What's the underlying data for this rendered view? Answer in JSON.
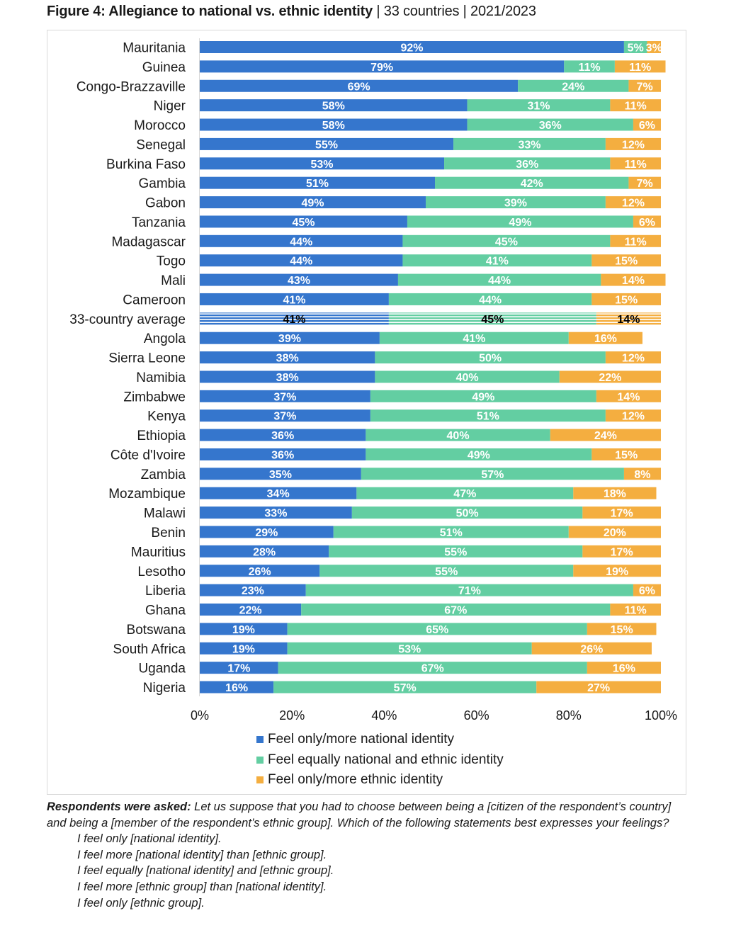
{
  "title": {
    "bold": "Figure 4: Allegiance to national vs. ethnic identity",
    "rest": " | 33 countries | 2021/2023"
  },
  "colors": {
    "national": "#3576cd",
    "equal": "#63cea2",
    "ethnic": "#f4ae40",
    "frame": "#d9d9d9"
  },
  "chart_data": {
    "type": "bar",
    "orientation": "horizontal",
    "stacked": true,
    "title": "Figure 4: Allegiance to national vs. ethnic identity | 33 countries | 2021/2023",
    "xlabel": "",
    "ylabel": "",
    "xlim": [
      0,
      100
    ],
    "x_ticks": [
      "0%",
      "20%",
      "40%",
      "60%",
      "80%",
      "100%"
    ],
    "grid": false,
    "legend_position": "bottom",
    "categories": [
      "Mauritania",
      "Guinea",
      "Congo-Brazzaville",
      "Niger",
      "Morocco",
      "Senegal",
      "Burkina Faso",
      "Gambia",
      "Gabon",
      "Tanzania",
      "Madagascar",
      "Togo",
      "Mali",
      "Cameroon",
      "33-country average",
      "Angola",
      "Sierra Leone",
      "Namibia",
      "Zimbabwe",
      "Kenya",
      "Ethiopia",
      "Côte d'Ivoire",
      "Zambia",
      "Mozambique",
      "Malawi",
      "Benin",
      "Mauritius",
      "Lesotho",
      "Liberia",
      "Ghana",
      "Botswana",
      "South Africa",
      "Uganda",
      "Nigeria"
    ],
    "highlight_category": "33-country average",
    "series": [
      {
        "name": "Feel only/more national identity",
        "color_key": "national",
        "values": [
          92,
          79,
          69,
          58,
          58,
          55,
          53,
          51,
          49,
          45,
          44,
          44,
          43,
          41,
          41,
          39,
          38,
          38,
          37,
          37,
          36,
          36,
          35,
          34,
          33,
          29,
          28,
          26,
          23,
          22,
          19,
          19,
          17,
          16
        ]
      },
      {
        "name": "Feel equally national and ethnic identity",
        "color_key": "equal",
        "values": [
          5,
          11,
          24,
          31,
          36,
          33,
          36,
          42,
          39,
          49,
          45,
          41,
          44,
          44,
          45,
          41,
          50,
          40,
          49,
          51,
          40,
          49,
          57,
          47,
          50,
          51,
          55,
          55,
          71,
          67,
          65,
          53,
          67,
          57
        ]
      },
      {
        "name": "Feel only/more ethnic identity",
        "color_key": "ethnic",
        "values": [
          3,
          11,
          7,
          11,
          6,
          12,
          11,
          7,
          12,
          6,
          11,
          15,
          14,
          15,
          14,
          16,
          12,
          22,
          14,
          12,
          24,
          15,
          8,
          18,
          17,
          20,
          17,
          19,
          6,
          11,
          15,
          26,
          16,
          27
        ]
      }
    ]
  },
  "notes": {
    "lead": "Respondents were asked:",
    "question": " Let us suppose that you had to choose between being a [citizen of the respondent’s country] and being a [member of the respondent’s ethnic group]. Which of the following statements best expresses your feelings?",
    "options": [
      "I feel only [national identity].",
      "I feel more [national identity] than [ethnic group].",
      "I feel equally [national identity] and [ethnic group].",
      "I feel more [ethnic group] than [national identity].",
      "I feel only [ethnic group]."
    ]
  }
}
